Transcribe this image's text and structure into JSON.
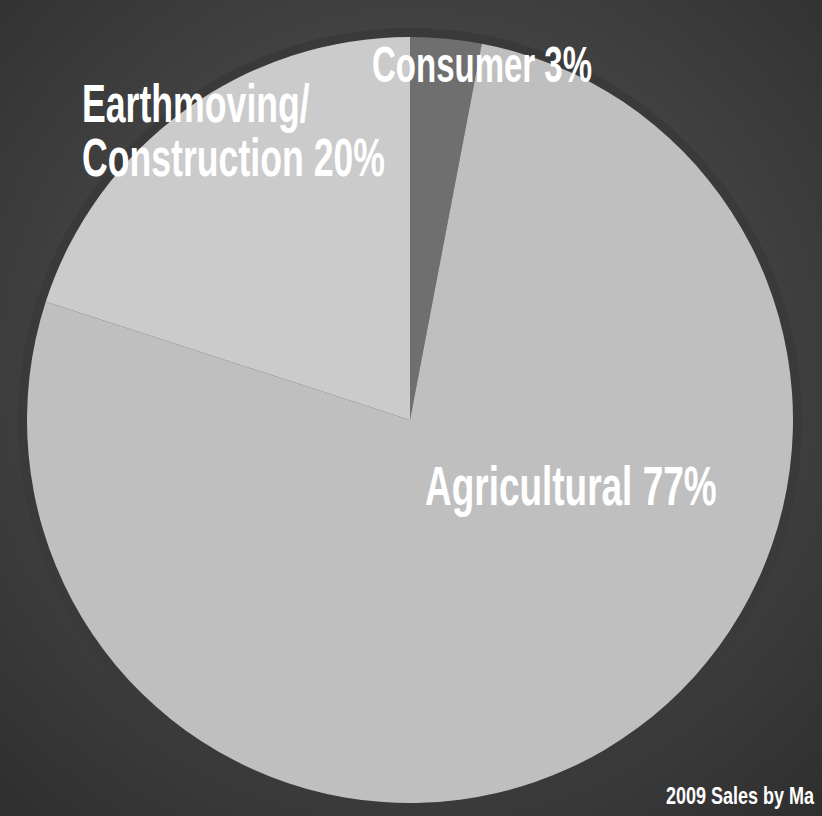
{
  "chart_data": {
    "type": "pie",
    "title": "2009 Sales by Ma",
    "categories": [
      "Consumer",
      "Agricultural",
      "Earthmoving/Construction"
    ],
    "values": [
      3,
      77,
      20
    ],
    "value_labels": [
      "3%",
      "77%",
      "20%"
    ],
    "colors": [
      "#6f6f6f",
      "#bfbfbf",
      "#cbcbcb"
    ],
    "data_labels": true
  }
}
